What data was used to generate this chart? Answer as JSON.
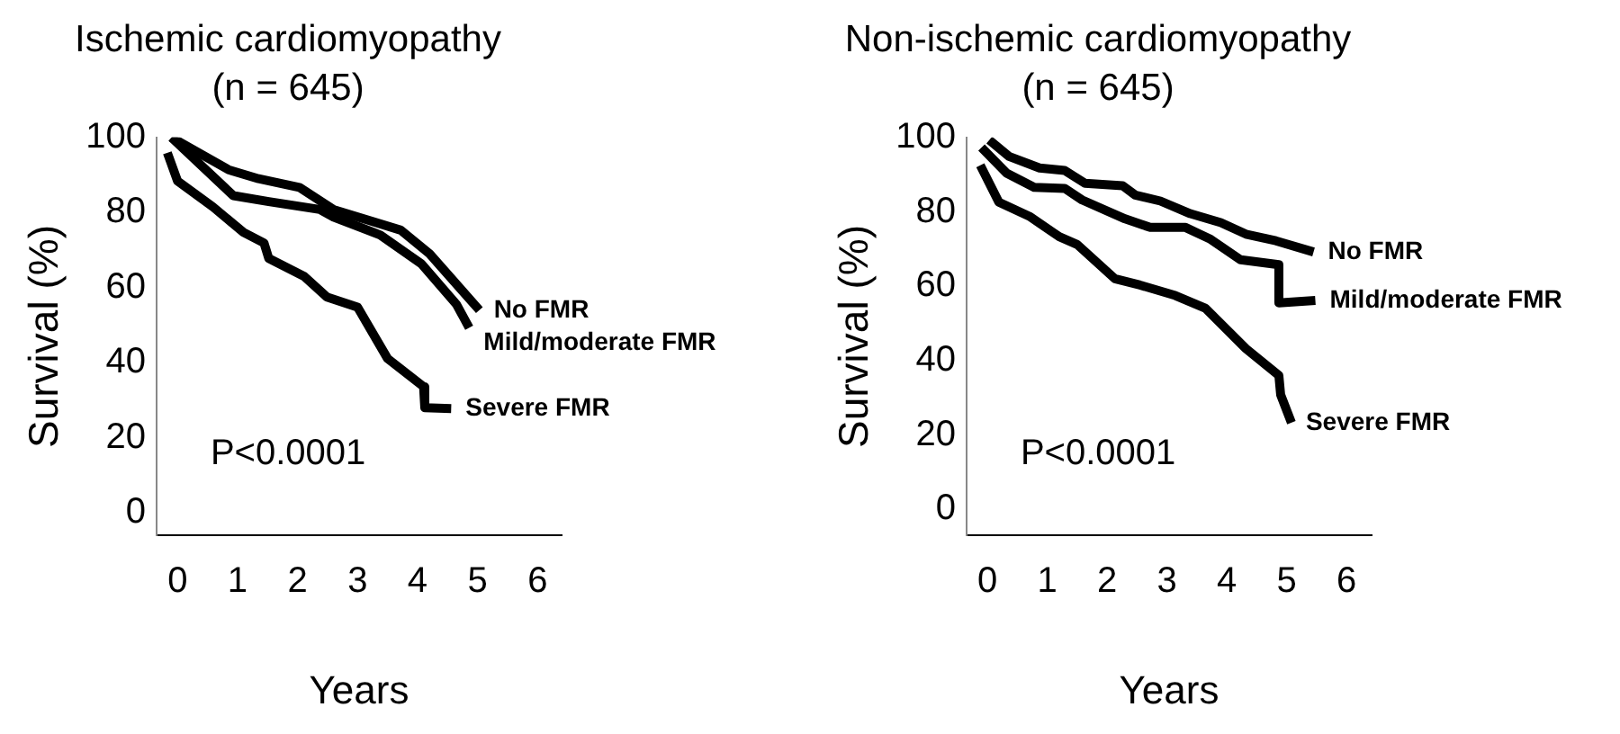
{
  "chart_data": [
    {
      "type": "line",
      "title": "Ischemic cardiomyopathy",
      "subtitle": "(n = 645)",
      "xlabel": "Years",
      "ylabel": "Survival (%)",
      "xlim": [
        -0.35,
        6.4
      ],
      "ylim": [
        -6,
        100
      ],
      "xticks": [
        0,
        1,
        2,
        3,
        4,
        5,
        6
      ],
      "yticks": [
        0,
        20,
        40,
        60,
        80,
        100
      ],
      "grid": false,
      "legend": false,
      "marker": "none",
      "line_style": "solid",
      "annotations": [
        "P<0.0001"
      ],
      "series": [
        {
          "name": "No FMR",
          "color": "#000000",
          "x": [
            -0.1,
            0.85,
            1.35,
            2.03,
            2.6,
            3.72,
            4.2,
            5.03
          ],
          "values": [
            100,
            91.4,
            89,
            86.7,
            80.8,
            75.3,
            69,
            54
          ]
        },
        {
          "name": "Mild/moderate FMR",
          "color": "#000000",
          "x": [
            -0.1,
            0.93,
            1.52,
            2.37,
            2.6,
            3.38,
            4.06,
            4.65,
            4.86
          ],
          "values": [
            100,
            84.5,
            82.9,
            80.8,
            78.8,
            74,
            66.4,
            55.5,
            49.3
          ]
        },
        {
          "name": "Severe FMR",
          "color": "#000000",
          "x": [
            -0.17,
            0,
            0.59,
            1.1,
            1.44,
            1.52,
            2.11,
            2.49,
            3.0,
            3.5,
            4.1,
            4.12,
            4.56
          ],
          "values": [
            95.9,
            88.4,
            81.5,
            74.7,
            71.9,
            67.8,
            63,
            57.5,
            54.8,
            41.1,
            33.6,
            28,
            27.8
          ]
        }
      ]
    },
    {
      "type": "line",
      "title": "Non-ischemic cardiomyopathy",
      "subtitle": "(n = 645)",
      "xlabel": "Years",
      "ylabel": "Survival (%)",
      "xlim": [
        -0.35,
        6.42
      ],
      "ylim": [
        -7,
        100
      ],
      "xticks": [
        0,
        1,
        2,
        3,
        4,
        5,
        6
      ],
      "yticks": [
        0,
        20,
        40,
        60,
        80,
        100
      ],
      "grid": false,
      "legend": false,
      "marker": "none",
      "line_style": "solid",
      "annotations": [
        "P<0.0001"
      ],
      "series": [
        {
          "name": "No FMR",
          "color": "#000000",
          "x": [
            0.03,
            0.36,
            0.87,
            1.29,
            1.63,
            2.26,
            2.47,
            2.89,
            3.39,
            3.9,
            4.32,
            4.82,
            5.45
          ],
          "values": [
            99.3,
            94.9,
            91.8,
            91.1,
            87.7,
            87,
            84.5,
            82.9,
            79.5,
            77.1,
            74,
            72.2,
            69.2
          ]
        },
        {
          "name": "Mild/moderate FMR",
          "color": "#000000",
          "x": [
            -0.1,
            0.32,
            0.78,
            1.29,
            1.58,
            2.3,
            2.72,
            3.31,
            3.73,
            4.23,
            4.87,
            4.87,
            5.48
          ],
          "values": [
            97.3,
            90.4,
            86.6,
            86.3,
            83.2,
            78.1,
            75.8,
            75.8,
            72.6,
            67.1,
            65.8,
            55.5,
            56.2
          ]
        },
        {
          "name": "Severe FMR",
          "color": "#000000",
          "x": [
            -0.12,
            0.19,
            0.7,
            1.2,
            1.5,
            2.13,
            2.55,
            3.14,
            3.64,
            4.32,
            4.87,
            4.9,
            5.08
          ],
          "values": [
            92.5,
            82.6,
            78.8,
            73.3,
            71.2,
            62,
            60.3,
            57.5,
            54.1,
            43.2,
            36,
            30.8,
            23.3
          ]
        }
      ]
    }
  ]
}
